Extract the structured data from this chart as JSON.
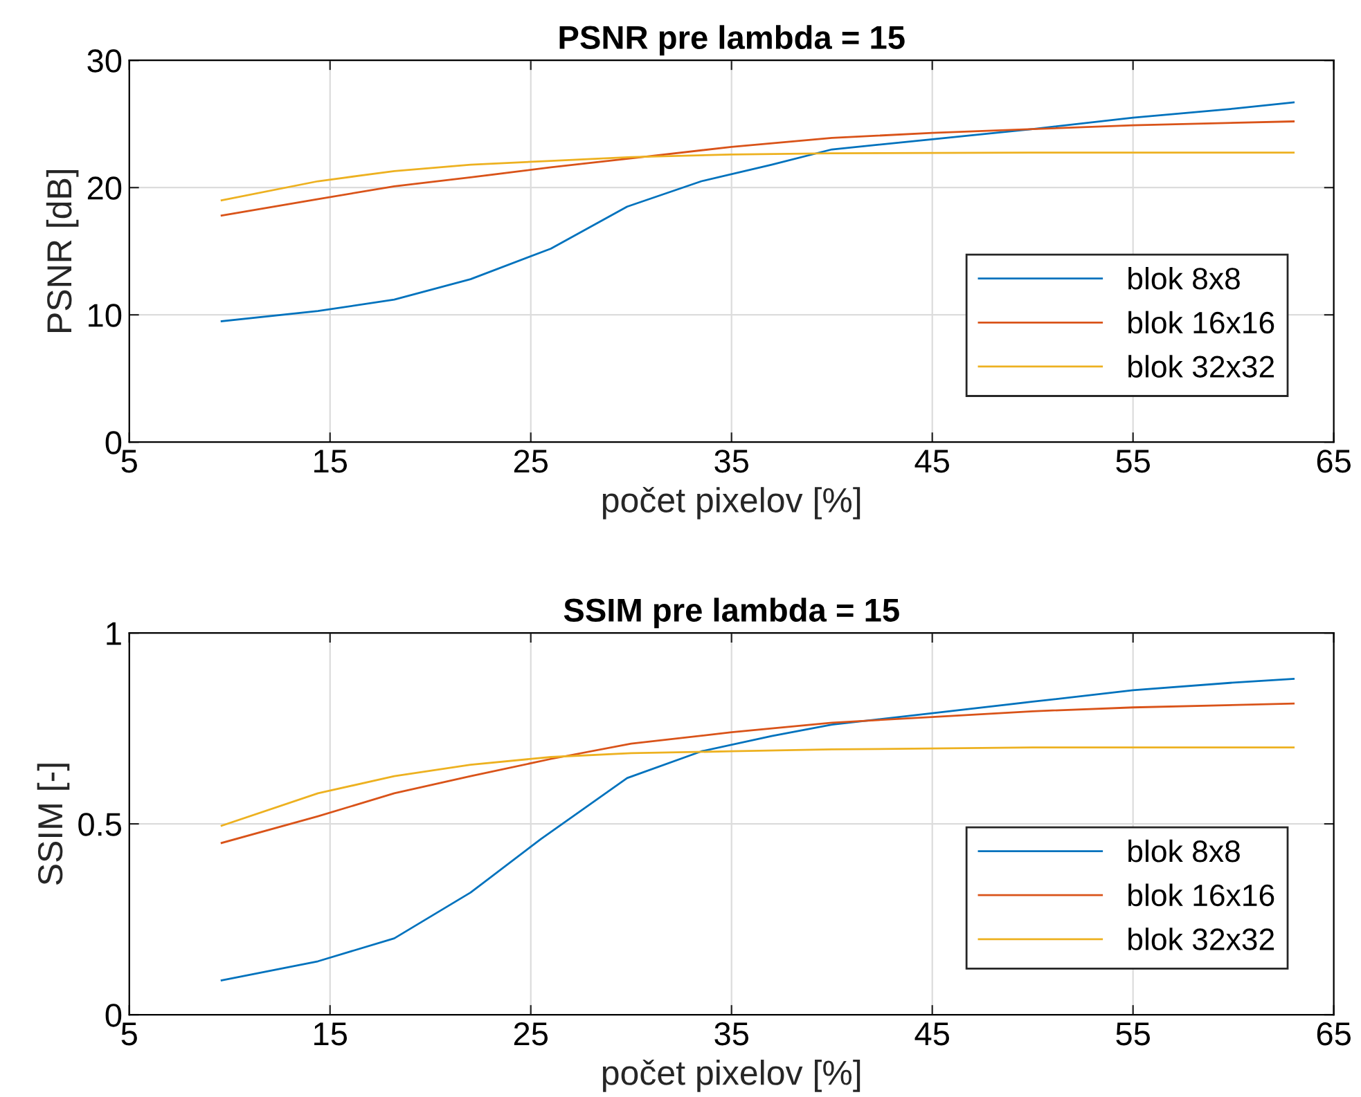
{
  "chart_data": [
    {
      "type": "line",
      "title": "PSNR pre lambda = 15",
      "xlabel": "počet pixelov [%]",
      "ylabel": "PSNR [dB]",
      "xlim": [
        5,
        65
      ],
      "xticks": [
        5,
        15,
        25,
        35,
        45,
        55,
        65
      ],
      "ylim": [
        0,
        30
      ],
      "yticks": [
        0,
        10,
        20,
        30
      ],
      "grid": true,
      "legend": "bottom right",
      "series": [
        {
          "name": "blok 8x8",
          "color": "#0072bd",
          "x": [
            9.6,
            14.4,
            18.2,
            22,
            26,
            29.8,
            33.5,
            37,
            40,
            45,
            50,
            55,
            60,
            63
          ],
          "values": [
            9.5,
            10.3,
            11.2,
            12.8,
            15.2,
            18.5,
            20.5,
            21.8,
            23,
            23.8,
            24.6,
            25.5,
            26.2,
            26.7
          ]
        },
        {
          "name": "blok 16x16",
          "color": "#d95319",
          "x": [
            9.6,
            14.4,
            18.2,
            22,
            26,
            30,
            35,
            40,
            45,
            50,
            55,
            63
          ],
          "values": [
            17.8,
            19.1,
            20.1,
            20.8,
            21.6,
            22.3,
            23.2,
            23.9,
            24.3,
            24.6,
            24.9,
            25.2
          ]
        },
        {
          "name": "blok 32x32",
          "color": "#edb120",
          "x": [
            9.6,
            14.4,
            18.2,
            22,
            26,
            30,
            35,
            40,
            50,
            63
          ],
          "values": [
            19,
            20.5,
            21.3,
            21.8,
            22.1,
            22.4,
            22.6,
            22.7,
            22.75,
            22.75
          ]
        }
      ]
    },
    {
      "type": "line",
      "title": "SSIM pre lambda = 15",
      "xlabel": "počet pixelov [%]",
      "ylabel": "SSIM [-]",
      "xlim": [
        5,
        65
      ],
      "xticks": [
        5,
        15,
        25,
        35,
        45,
        55,
        65
      ],
      "ylim": [
        0,
        1
      ],
      "yticks": [
        0,
        0.5,
        1
      ],
      "grid": true,
      "legend": "bottom right",
      "series": [
        {
          "name": "blok 8x8",
          "color": "#0072bd",
          "x": [
            9.6,
            14.4,
            18.2,
            22,
            25.5,
            29.8,
            33.5,
            37,
            40,
            45,
            50,
            55,
            60,
            63
          ],
          "values": [
            0.09,
            0.14,
            0.2,
            0.32,
            0.46,
            0.62,
            0.69,
            0.73,
            0.76,
            0.79,
            0.82,
            0.85,
            0.87,
            0.88
          ]
        },
        {
          "name": "blok 16x16",
          "color": "#d95319",
          "x": [
            9.6,
            14.4,
            18.2,
            22,
            26,
            30,
            35,
            40,
            45,
            50,
            55,
            63
          ],
          "values": [
            0.45,
            0.52,
            0.58,
            0.625,
            0.67,
            0.71,
            0.74,
            0.765,
            0.78,
            0.795,
            0.805,
            0.815
          ]
        },
        {
          "name": "blok 32x32",
          "color": "#edb120",
          "x": [
            9.6,
            14.4,
            18.2,
            22,
            26,
            30,
            35,
            40,
            50,
            63
          ],
          "values": [
            0.495,
            0.58,
            0.625,
            0.655,
            0.675,
            0.685,
            0.69,
            0.695,
            0.7,
            0.7
          ]
        }
      ]
    }
  ]
}
